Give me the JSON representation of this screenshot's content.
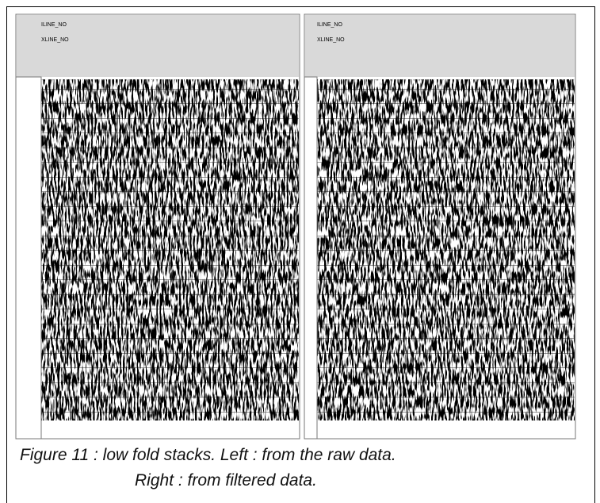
{
  "figure": {
    "panels": [
      {
        "iline_label": "ILINE_NO",
        "xline_label": "XLINE_NO"
      },
      {
        "iline_label": "ILINE_NO",
        "xline_label": "XLINE_NO"
      }
    ],
    "caption": {
      "line1": "Figure 11 : low fold stacks.  Left : from the raw data.",
      "line2": "Right : from filtered data."
    }
  }
}
